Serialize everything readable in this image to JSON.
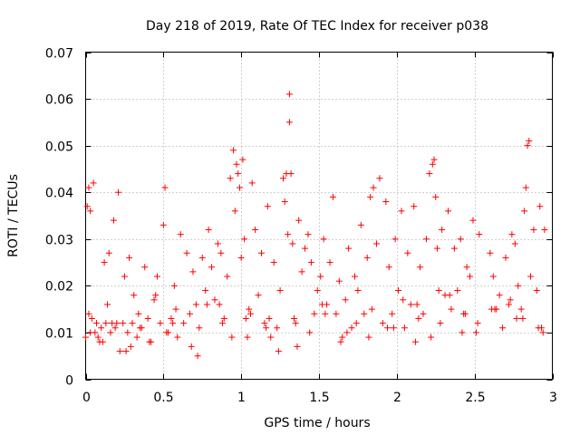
{
  "chart_data": {
    "type": "scatter",
    "title": "Day 218 of 2019, Rate Of TEC Index for receiver p038",
    "xlabel": "GPS time / hours",
    "ylabel": "ROTI / TECUs",
    "xlim": [
      0,
      3
    ],
    "ylim": [
      0,
      0.07
    ],
    "grid": true,
    "marker": "+",
    "marker_color": "#ff0000",
    "x_ticks": [
      0,
      0.5,
      1,
      1.5,
      2,
      2.5,
      3
    ],
    "x_tick_labels": [
      "0",
      "0.5",
      "1",
      "1.5",
      "2",
      "2.5",
      "3"
    ],
    "y_ticks": [
      0,
      0.01,
      0.02,
      0.03,
      0.04,
      0.05,
      0.06,
      0.07
    ],
    "y_tick_labels": [
      "0",
      "0.01",
      "0.02",
      "0.03",
      "0.04",
      "0.05",
      "0.06",
      "0.07"
    ],
    "series": [
      {
        "name": "p038",
        "x": [
          0.0,
          0.01,
          0.02,
          0.03,
          0.05,
          0.04,
          0.06,
          0.07,
          0.08,
          0.1,
          0.11,
          0.12,
          0.13,
          0.15,
          0.16,
          0.18,
          0.19,
          0.21,
          0.22,
          0.24,
          0.25,
          0.27,
          0.28,
          0.3,
          0.31,
          0.33,
          0.34,
          0.36,
          0.38,
          0.4,
          0.42,
          0.44,
          0.46,
          0.48,
          0.5,
          0.51,
          0.53,
          0.55,
          0.57,
          0.59,
          0.61,
          0.63,
          0.65,
          0.67,
          0.69,
          0.71,
          0.73,
          0.75,
          0.77,
          0.79,
          0.81,
          0.83,
          0.85,
          0.87,
          0.89,
          0.91,
          0.93,
          0.95,
          0.96,
          0.97,
          0.98,
          0.99,
          1.0,
          1.01,
          1.02,
          1.03,
          1.05,
          1.07,
          1.09,
          1.11,
          1.13,
          1.15,
          1.17,
          1.19,
          1.21,
          1.23,
          1.25,
          1.27,
          1.28,
          1.29,
          1.3,
          1.31,
          1.31,
          1.32,
          1.33,
          1.35,
          1.37,
          1.39,
          1.41,
          1.43,
          1.45,
          1.47,
          1.49,
          1.51,
          1.53,
          1.55,
          1.57,
          1.59,
          1.61,
          1.63,
          1.65,
          1.67,
          1.69,
          1.71,
          1.73,
          1.75,
          1.77,
          1.79,
          1.81,
          1.83,
          1.85,
          1.87,
          1.89,
          1.91,
          1.93,
          1.95,
          1.97,
          1.99,
          2.01,
          2.03,
          2.05,
          2.07,
          2.09,
          2.11,
          2.13,
          2.15,
          2.17,
          2.19,
          2.21,
          2.23,
          2.24,
          2.25,
          2.26,
          2.27,
          2.29,
          2.31,
          2.33,
          2.35,
          2.37,
          2.39,
          2.41,
          2.43,
          2.45,
          2.47,
          2.49,
          2.51,
          2.53,
          2.6,
          2.62,
          2.64,
          2.66,
          2.68,
          2.7,
          2.72,
          2.74,
          2.76,
          2.78,
          2.8,
          2.82,
          2.83,
          2.84,
          2.85,
          2.86,
          2.88,
          2.9,
          2.92,
          2.94,
          2.95,
          0.02,
          0.09,
          0.14,
          0.2,
          0.26,
          0.35,
          0.45,
          0.52,
          0.58,
          0.68,
          0.78,
          0.88,
          0.94,
          1.06,
          1.16,
          1.24,
          1.34,
          1.44,
          1.52,
          1.64,
          1.74,
          1.84,
          1.94,
          2.04,
          2.14,
          2.22,
          2.34,
          2.44,
          2.52,
          2.63,
          2.73,
          2.81,
          2.91,
          0.03,
          0.17,
          0.29,
          0.41,
          0.56,
          0.72,
          0.86,
          1.04,
          1.18,
          1.36,
          1.54,
          1.68,
          1.82,
          1.98,
          2.12,
          2.28,
          2.42,
          2.61,
          2.77,
          2.93
        ],
        "y": [
          0.009,
          0.037,
          0.041,
          0.036,
          0.042,
          0.013,
          0.01,
          0.012,
          0.009,
          0.011,
          0.008,
          0.025,
          0.012,
          0.027,
          0.01,
          0.034,
          0.011,
          0.04,
          0.006,
          0.012,
          0.022,
          0.01,
          0.026,
          0.012,
          0.018,
          0.009,
          0.014,
          0.011,
          0.024,
          0.013,
          0.008,
          0.017,
          0.022,
          0.012,
          0.033,
          0.041,
          0.01,
          0.013,
          0.02,
          0.009,
          0.031,
          0.012,
          0.027,
          0.014,
          0.023,
          0.016,
          0.011,
          0.026,
          0.019,
          0.032,
          0.024,
          0.017,
          0.029,
          0.027,
          0.013,
          0.022,
          0.043,
          0.049,
          0.036,
          0.046,
          0.044,
          0.041,
          0.026,
          0.047,
          0.03,
          0.013,
          0.015,
          0.042,
          0.032,
          0.018,
          0.027,
          0.012,
          0.037,
          0.009,
          0.025,
          0.011,
          0.019,
          0.043,
          0.038,
          0.044,
          0.031,
          0.055,
          0.061,
          0.044,
          0.029,
          0.012,
          0.034,
          0.023,
          0.028,
          0.031,
          0.025,
          0.014,
          0.019,
          0.022,
          0.03,
          0.016,
          0.025,
          0.039,
          0.014,
          0.021,
          0.009,
          0.017,
          0.028,
          0.011,
          0.022,
          0.019,
          0.033,
          0.014,
          0.026,
          0.039,
          0.041,
          0.029,
          0.043,
          0.012,
          0.038,
          0.024,
          0.014,
          0.03,
          0.019,
          0.036,
          0.011,
          0.027,
          0.016,
          0.037,
          0.016,
          0.024,
          0.014,
          0.03,
          0.044,
          0.046,
          0.047,
          0.039,
          0.028,
          0.019,
          0.032,
          0.018,
          0.036,
          0.015,
          0.028,
          0.019,
          0.03,
          0.014,
          0.024,
          0.022,
          0.034,
          0.01,
          0.031,
          0.027,
          0.022,
          0.015,
          0.018,
          0.011,
          0.026,
          0.016,
          0.031,
          0.029,
          0.02,
          0.015,
          0.036,
          0.041,
          0.05,
          0.051,
          0.022,
          0.032,
          0.019,
          0.037,
          0.01,
          0.032,
          0.014,
          0.008,
          0.016,
          0.012,
          0.006,
          0.011,
          0.018,
          0.01,
          0.015,
          0.007,
          0.016,
          0.012,
          0.009,
          0.014,
          0.011,
          0.006,
          0.013,
          0.01,
          0.016,
          0.008,
          0.012,
          0.015,
          0.011,
          0.017,
          0.013,
          0.009,
          0.018,
          0.014,
          0.012,
          0.015,
          0.017,
          0.013,
          0.011,
          0.01,
          0.012,
          0.007,
          0.008,
          0.012,
          0.005,
          0.016,
          0.009,
          0.013,
          0.007,
          0.014,
          0.01,
          0.009,
          0.011,
          0.008,
          0.012,
          0.01,
          0.015,
          0.013,
          0.011
        ]
      }
    ]
  }
}
